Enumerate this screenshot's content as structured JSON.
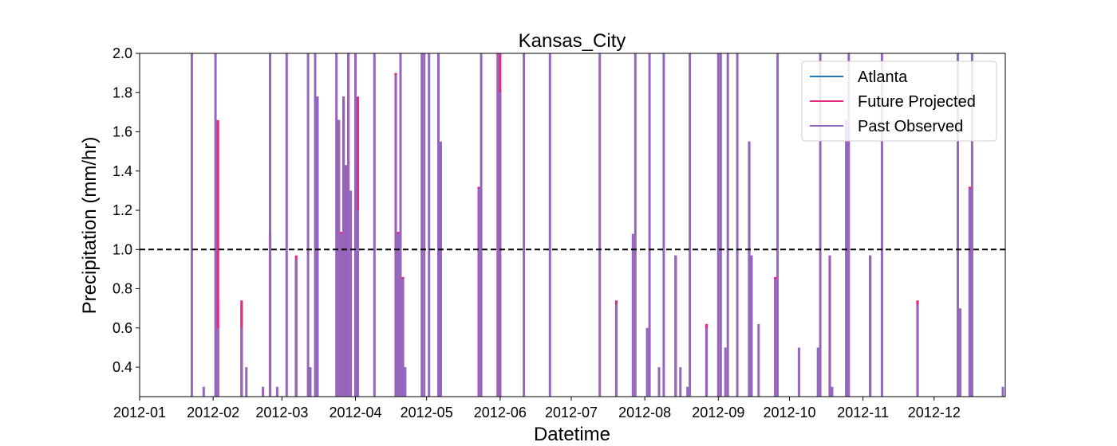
{
  "chart_data": {
    "type": "bar",
    "title": "Kansas_City",
    "xlabel": "Datetime",
    "ylabel": "Precipitation (mm/hr)",
    "ylim": [
      0.25,
      2.0
    ],
    "xlim": [
      "2012-01-01",
      "2012-12-31"
    ],
    "yticks": [
      "0.4",
      "0.6",
      "0.8",
      "1.0",
      "1.2",
      "1.4",
      "1.6",
      "1.8",
      "2.0"
    ],
    "xticks": [
      "2012-01",
      "2012-02",
      "2012-03",
      "2012-04",
      "2012-05",
      "2012-06",
      "2012-07",
      "2012-08",
      "2012-09",
      "2012-10",
      "2012-11",
      "2012-12"
    ],
    "threshold": 1.0,
    "grid": false,
    "legend_position": "top-right",
    "colors": {
      "atlanta": "#1f77b4",
      "future": "#e6287e",
      "past": "#9467bd",
      "threshold": "#000000"
    },
    "series": [
      {
        "name": "Past Observed",
        "points": [
          [
            "2012-01-23",
            2.0
          ],
          [
            "2012-01-28",
            0.3
          ],
          [
            "2012-02-02",
            2.0
          ],
          [
            "2012-02-03",
            0.6
          ],
          [
            "2012-02-13",
            0.6
          ],
          [
            "2012-02-15",
            0.4
          ],
          [
            "2012-02-22",
            0.3
          ],
          [
            "2012-02-25",
            2.0
          ],
          [
            "2012-02-28",
            0.3
          ],
          [
            "2012-03-03",
            2.0
          ],
          [
            "2012-03-07",
            0.95
          ],
          [
            "2012-03-12",
            2.0
          ],
          [
            "2012-03-13",
            0.4
          ],
          [
            "2012-03-15",
            2.0
          ],
          [
            "2012-03-16",
            1.78
          ],
          [
            "2012-03-24",
            2.0
          ],
          [
            "2012-03-25",
            1.66
          ],
          [
            "2012-03-26",
            1.08
          ],
          [
            "2012-03-27",
            1.78
          ],
          [
            "2012-03-28",
            1.43
          ],
          [
            "2012-03-29",
            2.0
          ],
          [
            "2012-03-30",
            1.3
          ],
          [
            "2012-04-01",
            2.0
          ],
          [
            "2012-04-02",
            1.2
          ],
          [
            "2012-04-09",
            2.0
          ],
          [
            "2012-04-18",
            1.89
          ],
          [
            "2012-04-19",
            1.08
          ],
          [
            "2012-04-20",
            2.0
          ],
          [
            "2012-04-21",
            0.85
          ],
          [
            "2012-04-22",
            0.4
          ],
          [
            "2012-04-29",
            2.0
          ],
          [
            "2012-04-30",
            2.0
          ],
          [
            "2012-05-02",
            2.0
          ],
          [
            "2012-05-06",
            2.0
          ],
          [
            "2012-05-07",
            1.55
          ],
          [
            "2012-05-23",
            1.31
          ],
          [
            "2012-05-24",
            2.0
          ],
          [
            "2012-05-31",
            2.0
          ],
          [
            "2012-06-01",
            1.8
          ],
          [
            "2012-06-11",
            2.0
          ],
          [
            "2012-06-22",
            2.0
          ],
          [
            "2012-07-13",
            2.0
          ],
          [
            "2012-07-20",
            0.72
          ],
          [
            "2012-07-27",
            1.08
          ],
          [
            "2012-07-28",
            2.0
          ],
          [
            "2012-08-02",
            0.6
          ],
          [
            "2012-08-03",
            2.0
          ],
          [
            "2012-08-07",
            0.4
          ],
          [
            "2012-08-09",
            2.0
          ],
          [
            "2012-08-14",
            0.97
          ],
          [
            "2012-08-16",
            0.4
          ],
          [
            "2012-08-19",
            0.3
          ],
          [
            "2012-08-20",
            2.0
          ],
          [
            "2012-08-27",
            0.6
          ],
          [
            "2012-09-01",
            2.0
          ],
          [
            "2012-09-02",
            2.0
          ],
          [
            "2012-09-04",
            0.5
          ],
          [
            "2012-09-05",
            2.0
          ],
          [
            "2012-09-09",
            2.0
          ],
          [
            "2012-09-14",
            1.55
          ],
          [
            "2012-09-15",
            0.97
          ],
          [
            "2012-09-18",
            0.62
          ],
          [
            "2012-09-25",
            0.85
          ],
          [
            "2012-09-26",
            2.0
          ],
          [
            "2012-10-05",
            0.5
          ],
          [
            "2012-10-13",
            0.5
          ],
          [
            "2012-10-14",
            2.0
          ],
          [
            "2012-10-18",
            0.97
          ],
          [
            "2012-10-19",
            0.3
          ],
          [
            "2012-10-25",
            1.66
          ],
          [
            "2012-10-26",
            2.0
          ],
          [
            "2012-11-04",
            0.97
          ],
          [
            "2012-11-09",
            2.0
          ],
          [
            "2012-11-24",
            0.72
          ],
          [
            "2012-12-11",
            2.0
          ],
          [
            "2012-12-12",
            0.7
          ],
          [
            "2012-12-16",
            1.31
          ],
          [
            "2012-12-17",
            2.0
          ],
          [
            "2012-12-30",
            0.3
          ]
        ]
      },
      {
        "name": "Future Projected",
        "points": [
          [
            "2012-02-03",
            1.66
          ],
          [
            "2012-02-03",
            0.74
          ],
          [
            "2012-02-13",
            0.74
          ],
          [
            "2012-02-25",
            1.09
          ],
          [
            "2012-03-07",
            0.97
          ],
          [
            "2012-03-16",
            1.78
          ],
          [
            "2012-03-25",
            1.66
          ],
          [
            "2012-03-26",
            1.09
          ],
          [
            "2012-03-27",
            1.78
          ],
          [
            "2012-03-28",
            1.43
          ],
          [
            "2012-03-29",
            2.0
          ],
          [
            "2012-04-02",
            1.78
          ],
          [
            "2012-04-18",
            1.9
          ],
          [
            "2012-04-19",
            1.09
          ],
          [
            "2012-04-21",
            0.86
          ],
          [
            "2012-05-23",
            1.32
          ],
          [
            "2012-05-31",
            2.0
          ],
          [
            "2012-06-01",
            2.0
          ],
          [
            "2012-07-20",
            0.74
          ],
          [
            "2012-08-14",
            0.97
          ],
          [
            "2012-08-27",
            0.62
          ],
          [
            "2012-09-14",
            1.55
          ],
          [
            "2012-09-15",
            0.97
          ],
          [
            "2012-09-25",
            0.86
          ],
          [
            "2012-10-18",
            0.97
          ],
          [
            "2012-10-25",
            1.66
          ],
          [
            "2012-11-04",
            0.97
          ],
          [
            "2012-11-24",
            0.74
          ],
          [
            "2012-12-16",
            1.32
          ]
        ]
      },
      {
        "name": "Atlanta",
        "points": []
      }
    ],
    "legend": [
      {
        "label": "Atlanta",
        "color": "#1f77b4"
      },
      {
        "label": "Future Projected",
        "color": "#e6287e"
      },
      {
        "label": "Past Observed",
        "color": "#9467bd"
      }
    ]
  }
}
